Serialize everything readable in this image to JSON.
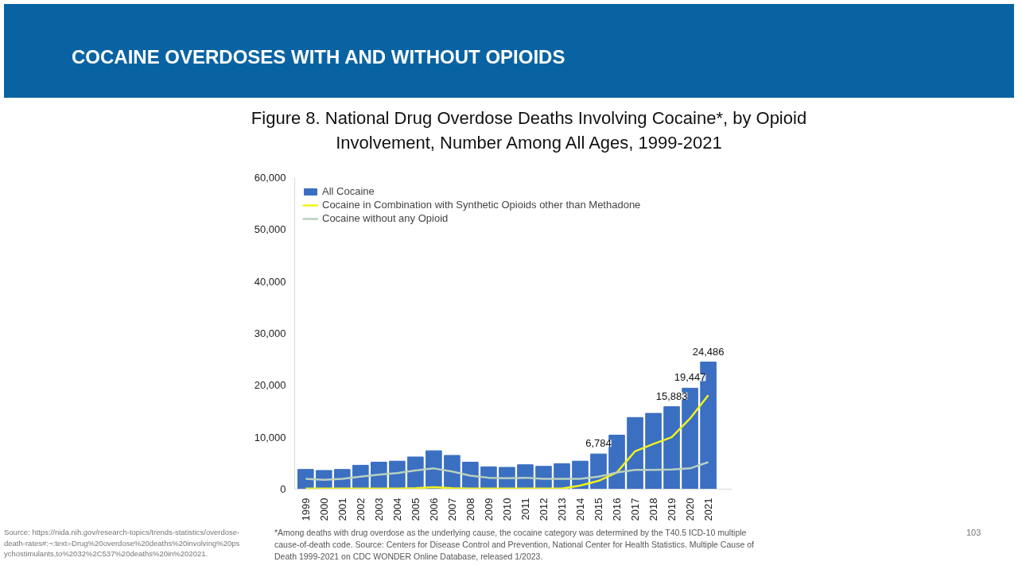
{
  "chart_data": {
    "type": "bar",
    "title": "COCAINE OVERDOSES WITH AND WITHOUT OPIOIDS",
    "subtitle": "Figure 8. National Drug Overdose Deaths Involving Cocaine*, by Opioid Involvement, Number Among All Ages, 1999-2021",
    "categories": [
      "1999",
      "2000",
      "2001",
      "2002",
      "2003",
      "2004",
      "2005",
      "2006",
      "2007",
      "2008",
      "2009",
      "2010",
      "2011",
      "2012",
      "2013",
      "2014",
      "2015",
      "2016",
      "2017",
      "2018",
      "2019",
      "2020",
      "2021"
    ],
    "series": [
      {
        "name": "All Cocaine",
        "color": "#3a6fc2",
        "values": [
          3800,
          3600,
          3800,
          4600,
          5200,
          5400,
          6200,
          7400,
          6500,
          5200,
          4300,
          4200,
          4700,
          4400,
          4900,
          5400,
          6784,
          10400,
          13800,
          14600,
          15883,
          19447,
          24486
        ],
        "value_labels": [
          null,
          null,
          null,
          null,
          null,
          null,
          null,
          null,
          null,
          null,
          null,
          null,
          null,
          null,
          null,
          null,
          "6,784",
          null,
          null,
          null,
          "15,883",
          "19,447",
          "24,486"
        ]
      },
      {
        "name": "Cocaine in Combination with Synthetic Opioids other than Methadone",
        "type": "line",
        "color": "#f2f21a",
        "values": [
          100,
          100,
          100,
          100,
          100,
          100,
          200,
          400,
          200,
          100,
          100,
          100,
          100,
          100,
          100,
          700,
          1600,
          3200,
          7300,
          8700,
          10000,
          13600,
          18100
        ]
      },
      {
        "name": "Cocaine without any Opioid",
        "type": "line",
        "color": "#b9d0bf",
        "values": [
          2000,
          1800,
          2000,
          2400,
          2800,
          3100,
          3600,
          4000,
          3400,
          2600,
          2200,
          2100,
          2200,
          2000,
          2000,
          2000,
          2400,
          3200,
          3700,
          3700,
          3800,
          4000,
          5200
        ]
      }
    ],
    "ylim": [
      0,
      60000
    ],
    "yticks": [
      {
        "value": 0,
        "label": "0"
      },
      {
        "value": 10000,
        "label": "10,000"
      },
      {
        "value": 20000,
        "label": "20,000"
      },
      {
        "value": 30000,
        "label": "30,000"
      },
      {
        "value": 40000,
        "label": "40,000"
      },
      {
        "value": 50000,
        "label": "50,000"
      },
      {
        "value": 60000,
        "label": "60,000"
      }
    ],
    "legend": "top left",
    "annotations": [
      "*Among deaths with drug overdose as the underlying cause, the cocaine category was determined by the T40.5 ICD-10 multiple cause-of-death code. Source: Centers for Disease Control and Prevention, National Center for Health Statistics. Multiple Cause of Death 1999-2021 on CDC WONDER Online Database, released 1/2023.",
      "Source:  https://nida.nih.gov/research-topics/trends-statistics/overdose-death-rates#:~:text=Drug%20overdose%20deaths%20involving%20psychostimulants,to%2032%2C537%20deaths%20in%202021.",
      "103"
    ]
  }
}
